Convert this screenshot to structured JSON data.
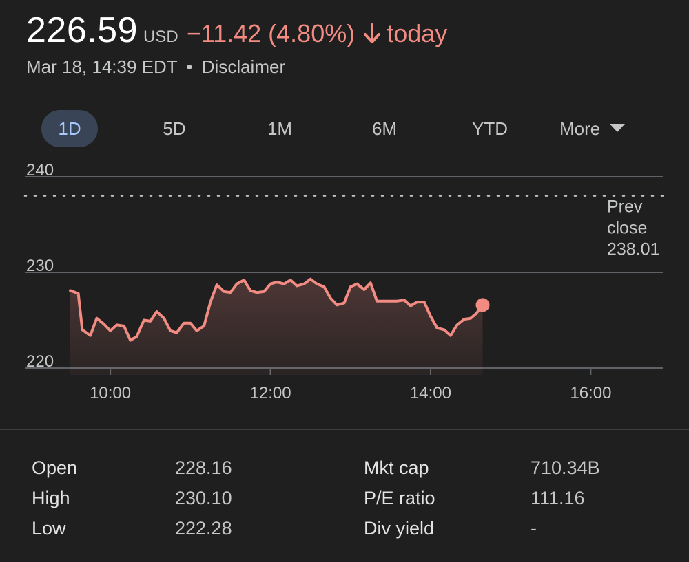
{
  "quote": {
    "price": "226.59",
    "currency": "USD",
    "change": "−11.42 (4.80%)",
    "period": "today",
    "timestamp": "Mar 18, 14:39 EDT",
    "separator": "•",
    "disclaimer": "Disclaimer"
  },
  "colors": {
    "negative": "#f28b82",
    "active_tab_bg": "#394457",
    "active_tab_text": "#a8c7fa"
  },
  "tabs": [
    {
      "label": "1D",
      "active": true
    },
    {
      "label": "5D",
      "active": false
    },
    {
      "label": "1M",
      "active": false
    },
    {
      "label": "6M",
      "active": false
    },
    {
      "label": "YTD",
      "active": false
    },
    {
      "label": "More",
      "active": false
    }
  ],
  "chart_data": {
    "type": "line",
    "y_ticks": [
      "240",
      "230",
      "220"
    ],
    "x_ticks": [
      "10:00",
      "12:00",
      "14:00",
      "16:00"
    ],
    "ylim": [
      220,
      240
    ],
    "x_domain_hours": [
      9.5,
      16.9
    ],
    "prev_close": {
      "label_lines": [
        "Prev",
        "close",
        "238.01"
      ],
      "value": 238.01
    },
    "series": [
      {
        "x": [
          9.5,
          9.6,
          9.65,
          9.75,
          9.83,
          9.92,
          10.0,
          10.08,
          10.17,
          10.25,
          10.33,
          10.42,
          10.5,
          10.58,
          10.67,
          10.75,
          10.83,
          10.92,
          11.0,
          11.08,
          11.17,
          11.25,
          11.33,
          11.42,
          11.5,
          11.58,
          11.67,
          11.75,
          11.83,
          11.92,
          12.0,
          12.08,
          12.17,
          12.25,
          12.33,
          12.42,
          12.5,
          12.58,
          12.67,
          12.75,
          12.83,
          12.92,
          13.0,
          13.08,
          13.17,
          13.25,
          13.33,
          13.42,
          13.5,
          13.58,
          13.67,
          13.75,
          13.83,
          13.92,
          14.0,
          14.08,
          14.17,
          14.25,
          14.33,
          14.42,
          14.5,
          14.57,
          14.65
        ],
        "y": [
          228.1,
          227.8,
          224.0,
          223.4,
          225.2,
          224.6,
          223.9,
          224.5,
          224.4,
          222.9,
          223.3,
          225.0,
          224.9,
          225.9,
          225.2,
          223.9,
          223.7,
          224.7,
          224.7,
          223.9,
          224.4,
          226.9,
          228.7,
          228.0,
          227.9,
          228.8,
          229.2,
          228.1,
          227.9,
          228.0,
          228.8,
          229.0,
          228.8,
          229.2,
          228.6,
          228.8,
          229.3,
          228.8,
          228.5,
          227.3,
          226.6,
          226.8,
          228.5,
          228.8,
          228.2,
          228.9,
          227.0,
          227.0,
          227.0,
          227.0,
          227.1,
          226.5,
          226.9,
          226.9,
          225.4,
          224.2,
          224.0,
          223.4,
          224.5,
          225.1,
          225.2,
          225.7,
          226.59
        ]
      }
    ]
  },
  "stats": [
    {
      "label1": "Open",
      "value1": "228.16",
      "label2": "Mkt cap",
      "value2": "710.34B"
    },
    {
      "label1": "High",
      "value1": "230.10",
      "label2": "P/E ratio",
      "value2": "111.16"
    },
    {
      "label1": "Low",
      "value1": "222.28",
      "label2": "Div yield",
      "value2": "-"
    }
  ]
}
